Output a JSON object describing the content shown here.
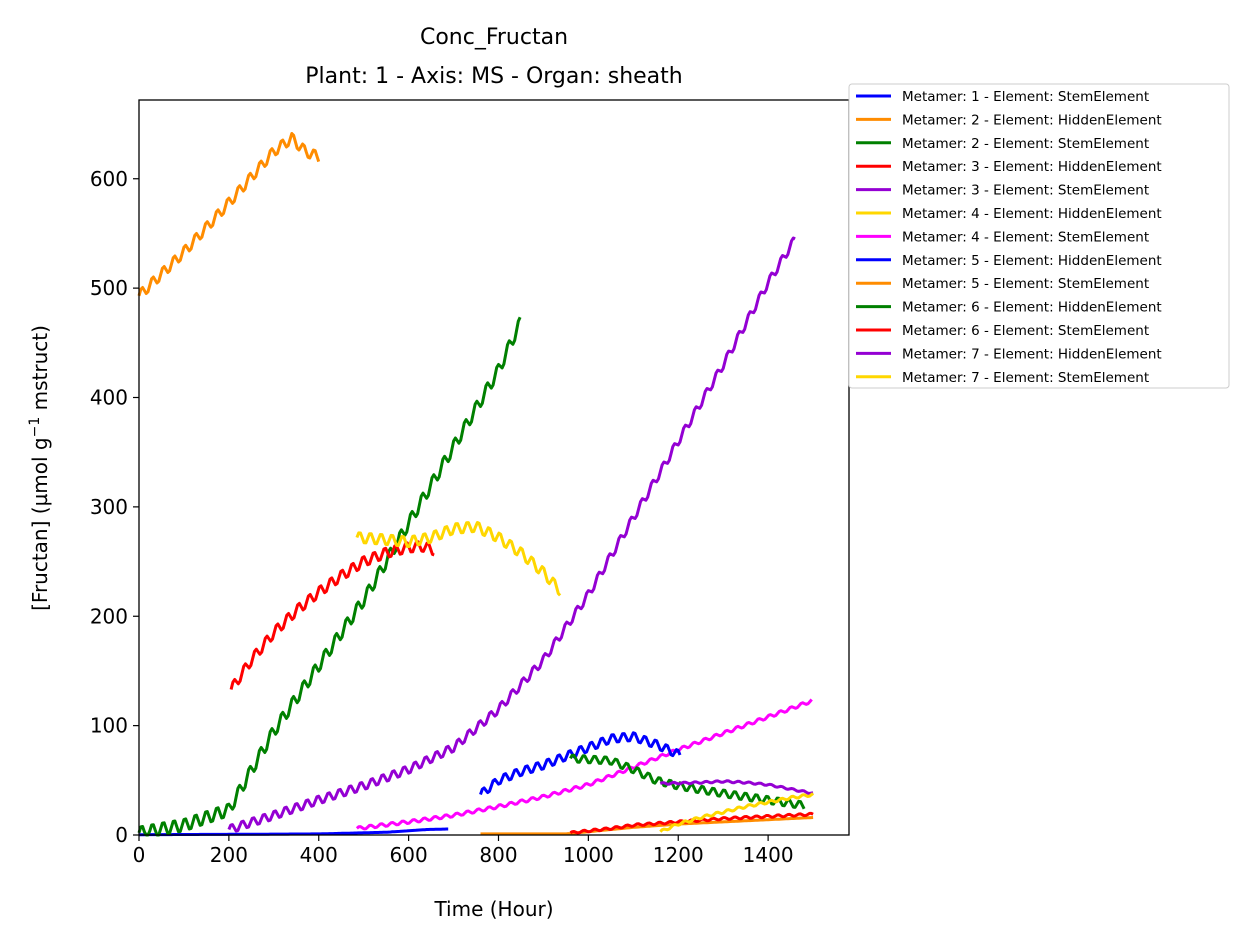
{
  "chart_data": {
    "type": "line",
    "title": "Conc_Fructan",
    "subtitle": "Plant: 1 - Axis: MS - Organ: sheath",
    "xlabel": "Time (Hour)",
    "ylabel_main": "[Fructan] (µmol g",
    "ylabel_sup": "−1",
    "ylabel_tail": " mstruct)",
    "xlim": [
      0,
      1580
    ],
    "ylim": [
      0,
      672
    ],
    "xticks": [
      0,
      200,
      400,
      600,
      800,
      1000,
      1200,
      1400
    ],
    "yticks": [
      0,
      100,
      200,
      300,
      400,
      500,
      600
    ],
    "grid": false,
    "legend_position": "outside-right",
    "series": [
      {
        "name": "Metamer: 1 - Element: StemElement",
        "color": "#0000ff",
        "start": 0,
        "end": 690,
        "ripple": 0,
        "points": [
          [
            0,
            0.3
          ],
          [
            200,
            0.6
          ],
          [
            400,
            1
          ],
          [
            550,
            2.5
          ],
          [
            640,
            5
          ],
          [
            690,
            5.5
          ]
        ]
      },
      {
        "name": "Metamer: 2 - Element: HiddenElement",
        "color": "#ff8c00",
        "start": 0,
        "end": 400,
        "ripple": 5,
        "points": [
          [
            0,
            493
          ],
          [
            100,
            533
          ],
          [
            200,
            578
          ],
          [
            300,
            625
          ],
          [
            340,
            637
          ],
          [
            370,
            625
          ],
          [
            400,
            620
          ]
        ]
      },
      {
        "name": "Metamer: 2 - Element: StemElement",
        "color": "#008000",
        "start": 0,
        "end": 850,
        "ripple": 6,
        "points": [
          [
            0,
            2
          ],
          [
            100,
            9
          ],
          [
            200,
            23
          ],
          [
            300,
            95
          ],
          [
            400,
            155
          ],
          [
            500,
            215
          ],
          [
            600,
            285
          ],
          [
            700,
            355
          ],
          [
            800,
            425
          ],
          [
            850,
            470
          ]
        ]
      },
      {
        "name": "Metamer: 3 - Element: HiddenElement",
        "color": "#ff0000",
        "start": 205,
        "end": 660,
        "ripple": 5,
        "points": [
          [
            205,
            133
          ],
          [
            250,
            160
          ],
          [
            300,
            185
          ],
          [
            350,
            205
          ],
          [
            400,
            222
          ],
          [
            450,
            237
          ],
          [
            500,
            250
          ],
          [
            550,
            258
          ],
          [
            600,
            263
          ],
          [
            630,
            264
          ],
          [
            660,
            260
          ]
        ]
      },
      {
        "name": "Metamer: 3 - Element: StemElement",
        "color": "#9400d3",
        "start": 200,
        "end": 1460,
        "ripple": 4,
        "points": [
          [
            200,
            5
          ],
          [
            300,
            18
          ],
          [
            400,
            32
          ],
          [
            500,
            45
          ],
          [
            600,
            60
          ],
          [
            700,
            80
          ],
          [
            800,
            115
          ],
          [
            900,
            160
          ],
          [
            1000,
            220
          ],
          [
            1100,
            290
          ],
          [
            1200,
            360
          ],
          [
            1300,
            430
          ],
          [
            1400,
            505
          ],
          [
            1460,
            545
          ]
        ]
      },
      {
        "name": "Metamer: 4 - Element: HiddenElement",
        "color": "#ffd700",
        "start": 485,
        "end": 940,
        "ripple": 5,
        "points": [
          [
            485,
            272
          ],
          [
            550,
            270
          ],
          [
            600,
            268
          ],
          [
            650,
            272
          ],
          [
            700,
            280
          ],
          [
            750,
            282
          ],
          [
            800,
            272
          ],
          [
            850,
            258
          ],
          [
            900,
            240
          ],
          [
            940,
            222
          ]
        ]
      },
      {
        "name": "Metamer: 4 - Element: StemElement",
        "color": "#ff00ff",
        "start": 485,
        "end": 1500,
        "ripple": 1.5,
        "points": [
          [
            485,
            6
          ],
          [
            600,
            12
          ],
          [
            700,
            18
          ],
          [
            800,
            26
          ],
          [
            900,
            35
          ],
          [
            1000,
            46
          ],
          [
            1100,
            62
          ],
          [
            1200,
            78
          ],
          [
            1300,
            93
          ],
          [
            1400,
            108
          ],
          [
            1500,
            123
          ]
        ]
      },
      {
        "name": "Metamer: 5 - Element: HiddenElement",
        "color": "#0000ff",
        "start": 760,
        "end": 1205,
        "ripple": 4,
        "points": [
          [
            760,
            37
          ],
          [
            800,
            50
          ],
          [
            850,
            58
          ],
          [
            900,
            64
          ],
          [
            950,
            72
          ],
          [
            1000,
            80
          ],
          [
            1050,
            88
          ],
          [
            1100,
            90
          ],
          [
            1150,
            83
          ],
          [
            1205,
            73
          ]
        ]
      },
      {
        "name": "Metamer: 5 - Element: StemElement",
        "color": "#ff8c00",
        "start": 760,
        "end": 1500,
        "ripple": 0,
        "points": [
          [
            760,
            1
          ],
          [
            950,
            1
          ],
          [
            1000,
            3
          ],
          [
            1100,
            7
          ],
          [
            1200,
            10
          ],
          [
            1300,
            12
          ],
          [
            1400,
            14
          ],
          [
            1500,
            16
          ]
        ]
      },
      {
        "name": "Metamer: 6 - Element: HiddenElement",
        "color": "#008000",
        "start": 960,
        "end": 1480,
        "ripple": 3.5,
        "points": [
          [
            960,
            70
          ],
          [
            1050,
            68
          ],
          [
            1100,
            60
          ],
          [
            1150,
            50
          ],
          [
            1200,
            45
          ],
          [
            1300,
            38
          ],
          [
            1400,
            32
          ],
          [
            1480,
            27
          ]
        ]
      },
      {
        "name": "Metamer: 6 - Element: StemElement",
        "color": "#ff0000",
        "start": 960,
        "end": 1500,
        "ripple": 1,
        "points": [
          [
            960,
            2
          ],
          [
            1050,
            6
          ],
          [
            1100,
            9
          ],
          [
            1200,
            12
          ],
          [
            1300,
            15
          ],
          [
            1400,
            17
          ],
          [
            1500,
            19
          ]
        ]
      },
      {
        "name": "Metamer: 7 - Element: HiddenElement",
        "color": "#9400d3",
        "start": 1160,
        "end": 1500,
        "ripple": 0.8,
        "points": [
          [
            1160,
            47
          ],
          [
            1250,
            48
          ],
          [
            1300,
            49
          ],
          [
            1350,
            48
          ],
          [
            1400,
            46
          ],
          [
            1450,
            42
          ],
          [
            1500,
            38
          ]
        ]
      },
      {
        "name": "Metamer: 7 - Element: StemElement",
        "color": "#ffd700",
        "start": 1160,
        "end": 1500,
        "ripple": 1.2,
        "points": [
          [
            1160,
            3
          ],
          [
            1200,
            10
          ],
          [
            1250,
            16
          ],
          [
            1300,
            21
          ],
          [
            1350,
            26
          ],
          [
            1400,
            30
          ],
          [
            1450,
            34
          ],
          [
            1500,
            37
          ]
        ]
      }
    ]
  }
}
